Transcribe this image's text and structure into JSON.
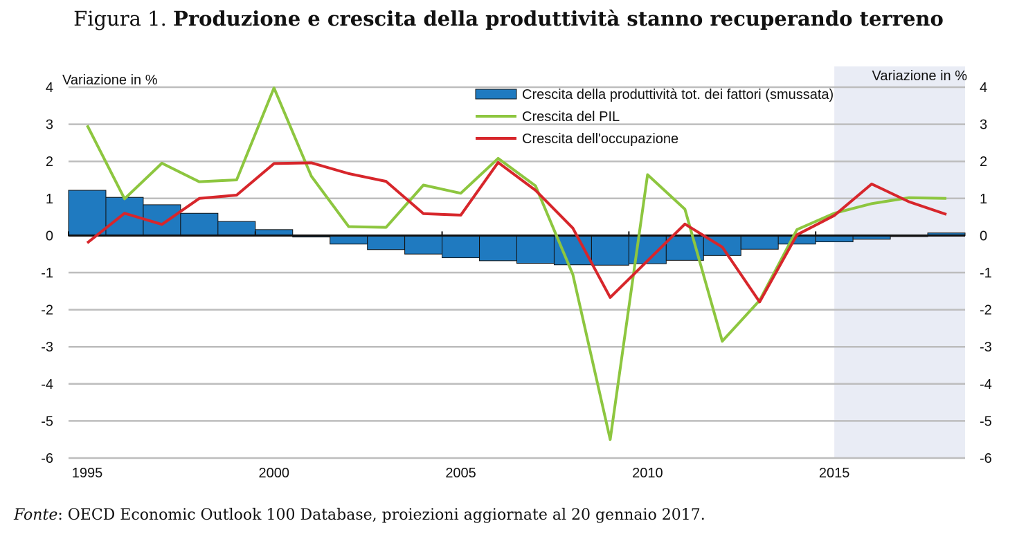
{
  "figure": {
    "prefix": "Figura 1.",
    "title": "Produzione e crescita della produttività stanno recuperando terreno"
  },
  "source": {
    "label": "Fonte",
    "text": ": OECD Economic Outlook 100 Database, proiezioni aggiornate al 20 gennaio 2017."
  },
  "colors": {
    "bars": "#1f7ac0",
    "gdp": "#8dc63f",
    "employment": "#d7262b",
    "projection_shade": "#e9ecf5",
    "grid": "#bdbdbd"
  },
  "chart_data": {
    "type": "bar",
    "ylabel_left": "Variazione in %",
    "ylabel_right": "Variazione in %",
    "ylim": [
      -6,
      4
    ],
    "yticks": [
      4,
      3,
      2,
      1,
      0,
      -1,
      -2,
      -3,
      -4,
      -5,
      -6
    ],
    "xticks": [
      "1995",
      "2000",
      "2005",
      "2010",
      "2015"
    ],
    "grid": true,
    "legend_placement": "top-center",
    "projection_from": 2016,
    "years": [
      1995,
      1996,
      1997,
      1998,
      1999,
      2000,
      2001,
      2002,
      2003,
      2004,
      2005,
      2006,
      2007,
      2008,
      2009,
      2010,
      2011,
      2012,
      2013,
      2014,
      2015,
      2016,
      2017,
      2018
    ],
    "series": [
      {
        "name": "Crescita della produttività tot. dei fattori (smussata)",
        "kind": "bar",
        "values": [
          1.22,
          1.03,
          0.83,
          0.6,
          0.38,
          0.16,
          -0.04,
          -0.23,
          -0.38,
          -0.5,
          -0.6,
          -0.68,
          -0.75,
          -0.79,
          -0.8,
          -0.76,
          -0.67,
          -0.54,
          -0.37,
          -0.23,
          -0.17,
          -0.1,
          -0.02,
          0.07
        ]
      },
      {
        "name": "Crescita del PIL",
        "kind": "line",
        "values": [
          2.97,
          0.99,
          1.95,
          1.45,
          1.5,
          3.98,
          1.6,
          0.24,
          0.22,
          1.36,
          1.14,
          2.08,
          1.34,
          -1.05,
          -5.5,
          1.64,
          0.71,
          -2.85,
          -1.75,
          0.16,
          0.6,
          0.86,
          1.02,
          1.0
        ]
      },
      {
        "name": "Crescita dell'occupazione",
        "kind": "line",
        "values": [
          -0.2,
          0.6,
          0.3,
          1.0,
          1.09,
          1.94,
          1.96,
          1.67,
          1.46,
          0.59,
          0.55,
          1.97,
          1.22,
          0.2,
          -1.67,
          -0.68,
          0.31,
          -0.31,
          -1.79,
          0.02,
          0.54,
          1.39,
          0.91,
          0.57
        ]
      }
    ]
  }
}
